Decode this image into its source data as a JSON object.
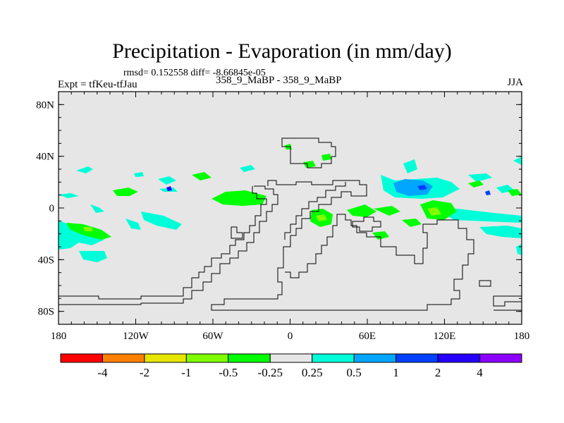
{
  "title": "Precipitation - Evaporation (in mm/day)",
  "stats_line": "rmsd= 0.152558 diff= -8.66845e-05",
  "expt_label": "Expt = tfKeu-tfJau",
  "period_label": "358_9_MaBP - 358_9_MaBP",
  "season_label": "JJA",
  "map": {
    "y_ticks": [
      {
        "lat": 80,
        "label": "80N"
      },
      {
        "lat": 40,
        "label": "40N"
      },
      {
        "lat": 0,
        "label": "0"
      },
      {
        "lat": -40,
        "label": "40S"
      },
      {
        "lat": -80,
        "label": "80S"
      }
    ],
    "x_ticks": [
      {
        "lon": -180,
        "label": "180"
      },
      {
        "lon": -120,
        "label": "120W"
      },
      {
        "lon": -60,
        "label": "60W"
      },
      {
        "lon": 0,
        "label": "0"
      },
      {
        "lon": 60,
        "label": "60E"
      },
      {
        "lon": 120,
        "label": "120E"
      },
      {
        "lon": 180,
        "label": "180"
      }
    ],
    "background_color": "#e6e6e6"
  },
  "colorbar": {
    "colors": [
      "#ff0000",
      "#ff8000",
      "#e6e600",
      "#80ff00",
      "#00ff00",
      "#e6e6e6",
      "#00ffd9",
      "#00a6ff",
      "#0040ff",
      "#2600ff",
      "#8c00ff"
    ],
    "labels": [
      "-4",
      "-2",
      "-1",
      "-0.5",
      "-0.25",
      "0.25",
      "0.5",
      "1",
      "2",
      "4"
    ]
  }
}
